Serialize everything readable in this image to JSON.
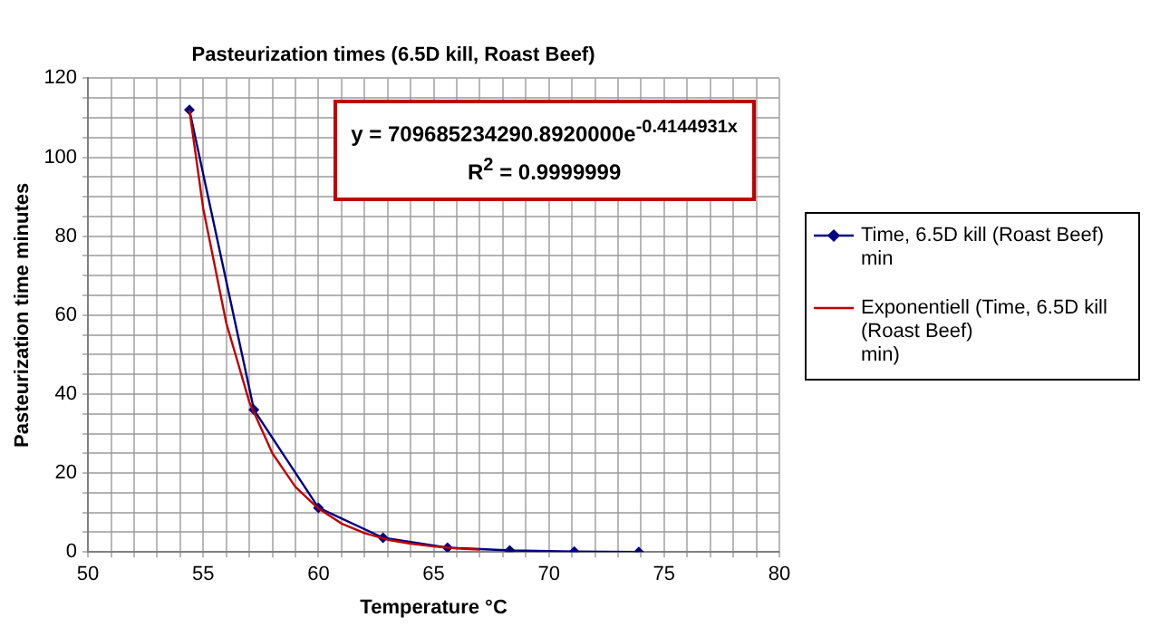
{
  "chart_data": {
    "type": "line",
    "title": "Pasteurization times (6.5D kill, Roast Beef)",
    "xlabel": "Temperature °C",
    "ylabel": "Pasteurization time minutes",
    "series": [
      {
        "name": "Time, 6.5D kill (Roast Beef)\nmin",
        "color": "#000080",
        "marker": "diamond",
        "x": [
          54.4,
          57.2,
          60,
          62.8,
          65.6,
          68.3,
          71.1,
          73.9
        ],
        "values": [
          112,
          36,
          11.2,
          3.6,
          1.1,
          0.4,
          0.1,
          0
        ]
      },
      {
        "name": "Exponentiell (Time, 6.5D kill (Roast Beef)\nmin)",
        "color": "#c00000",
        "marker": "none",
        "x": [
          54.4,
          55,
          56,
          57,
          58,
          59,
          60,
          61,
          62,
          63,
          64,
          65,
          66,
          67
        ],
        "values": [
          112,
          87,
          58,
          38,
          25,
          16.5,
          11,
          7.2,
          4.8,
          3.1,
          2.1,
          1.4,
          0.9,
          0.6
        ]
      }
    ],
    "annotations": [
      "y = 709685234290.8920000e$^{-0.4144931x}$\nR$^{2}$ = 0.9999999"
    ],
    "xlim": [
      50,
      80
    ],
    "xticks": [
      50,
      {
        "value": 51,
        "label": null
      },
      {
        "value": 52,
        "label": null
      },
      {
        "value": 53,
        "label": null
      },
      {
        "value": 54,
        "label": null
      },
      55,
      {
        "value": 56,
        "label": null
      },
      {
        "value": 57,
        "label": null
      },
      {
        "value": 58,
        "label": null
      },
      {
        "value": 59,
        "label": null
      },
      60,
      {
        "value": 61,
        "label": null
      },
      {
        "value": 62,
        "label": null
      },
      {
        "value": 63,
        "label": null
      },
      {
        "value": 64,
        "label": null
      },
      65,
      {
        "value": 66,
        "label": null
      },
      {
        "value": 67,
        "label": null
      },
      {
        "value": 68,
        "label": null
      },
      {
        "value": 69,
        "label": null
      },
      70,
      {
        "value": 71,
        "label": null
      },
      {
        "value": 72,
        "label": null
      },
      {
        "value": 73,
        "label": null
      },
      {
        "value": 74,
        "label": null
      },
      75,
      {
        "value": 76,
        "label": null
      },
      {
        "value": 77,
        "label": null
      },
      {
        "value": 78,
        "label": null
      },
      {
        "value": 79,
        "label": null
      },
      80
    ],
    "ylim": [
      0,
      120
    ],
    "yticks": [
      0,
      {
        "value": 5,
        "label": null
      },
      {
        "value": 10,
        "label": null
      },
      {
        "value": 15,
        "label": null
      },
      20,
      {
        "value": 25,
        "label": null
      },
      {
        "value": 30,
        "label": null
      },
      {
        "value": 35,
        "label": null
      },
      40,
      {
        "value": 45,
        "label": null
      },
      {
        "value": 50,
        "label": null
      },
      {
        "value": 55,
        "label": null
      },
      60,
      {
        "value": 65,
        "label": null
      },
      {
        "value": 70,
        "label": null
      },
      {
        "value": 75,
        "label": null
      },
      80,
      {
        "value": 85,
        "label": null
      },
      {
        "value": 90,
        "label": null
      },
      {
        "value": 95,
        "label": null
      },
      100,
      {
        "value": 105,
        "label": null
      },
      {
        "value": 110,
        "label": null
      },
      {
        "value": 115,
        "label": null
      },
      120
    ],
    "grid": true,
    "legend": "right",
    "line_style": "solid"
  }
}
